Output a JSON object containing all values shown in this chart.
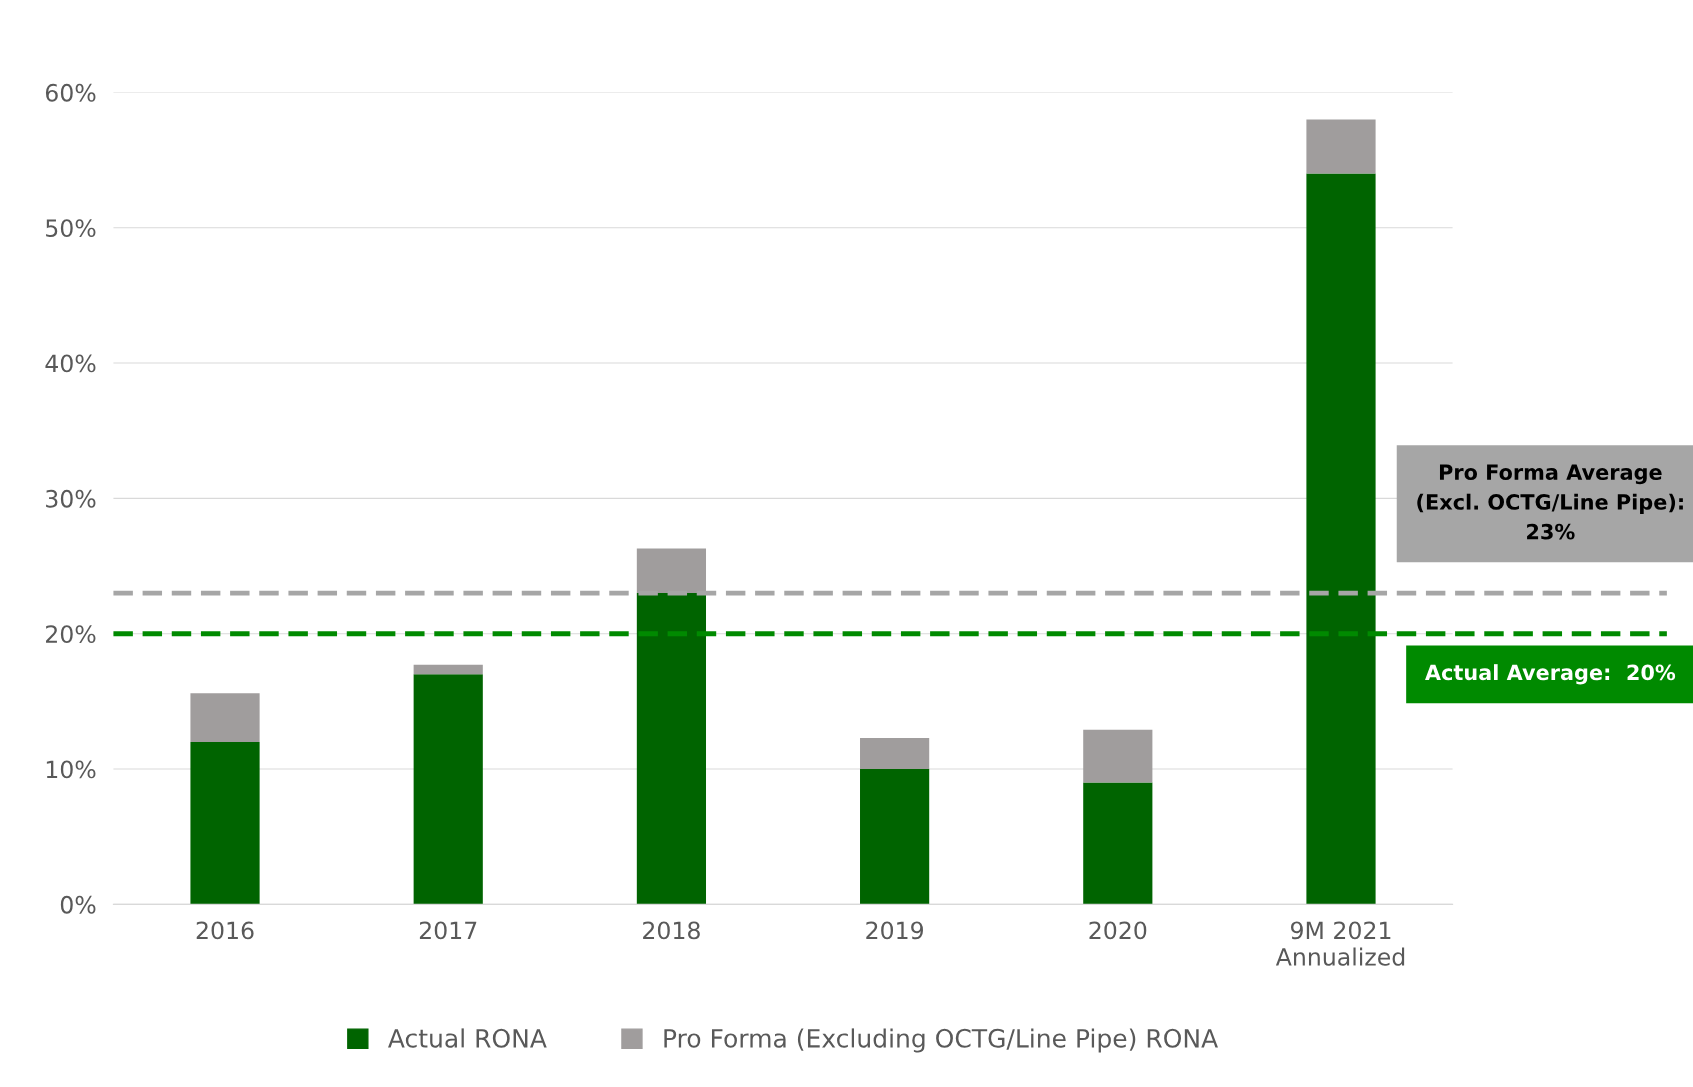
{
  "chart_data": {
    "type": "bar",
    "stacked": true,
    "categories": [
      "2016",
      "2017",
      "2018",
      "2019",
      "2020",
      "9M 2021\nAnnualized"
    ],
    "series": [
      {
        "name": "Actual RONA",
        "color": "#006400",
        "values": [
          12,
          17,
          23,
          10,
          9,
          54
        ]
      },
      {
        "name": "Pro Forma (Excluding OCTG/Line Pipe) RONA",
        "color": "#a09d9d",
        "values": [
          3.6,
          0.7,
          3.3,
          2.3,
          3.9,
          4
        ]
      }
    ],
    "ylim": [
      0,
      60
    ],
    "yticks": [
      {
        "value": 0,
        "label": "0%"
      },
      {
        "value": 10,
        "label": "10%"
      },
      {
        "value": 20,
        "label": "20%"
      },
      {
        "value": 30,
        "label": "30%"
      },
      {
        "value": 40,
        "label": "40%"
      },
      {
        "value": 50,
        "label": "50%"
      },
      {
        "value": 60,
        "label": "60%"
      }
    ],
    "grid": "y",
    "legend": "bottom",
    "ref_lines": [
      {
        "axis": "y",
        "value": 23,
        "label": "Pro Forma Average\n(Excl. OCTG/Line Pipe):\n23%",
        "color": "#a6a6a6",
        "line_style": "dashed"
      },
      {
        "axis": "y",
        "value": 20,
        "label": "Actual Average:  20%",
        "color": "#008a00",
        "line_style": "dashed"
      }
    ]
  }
}
